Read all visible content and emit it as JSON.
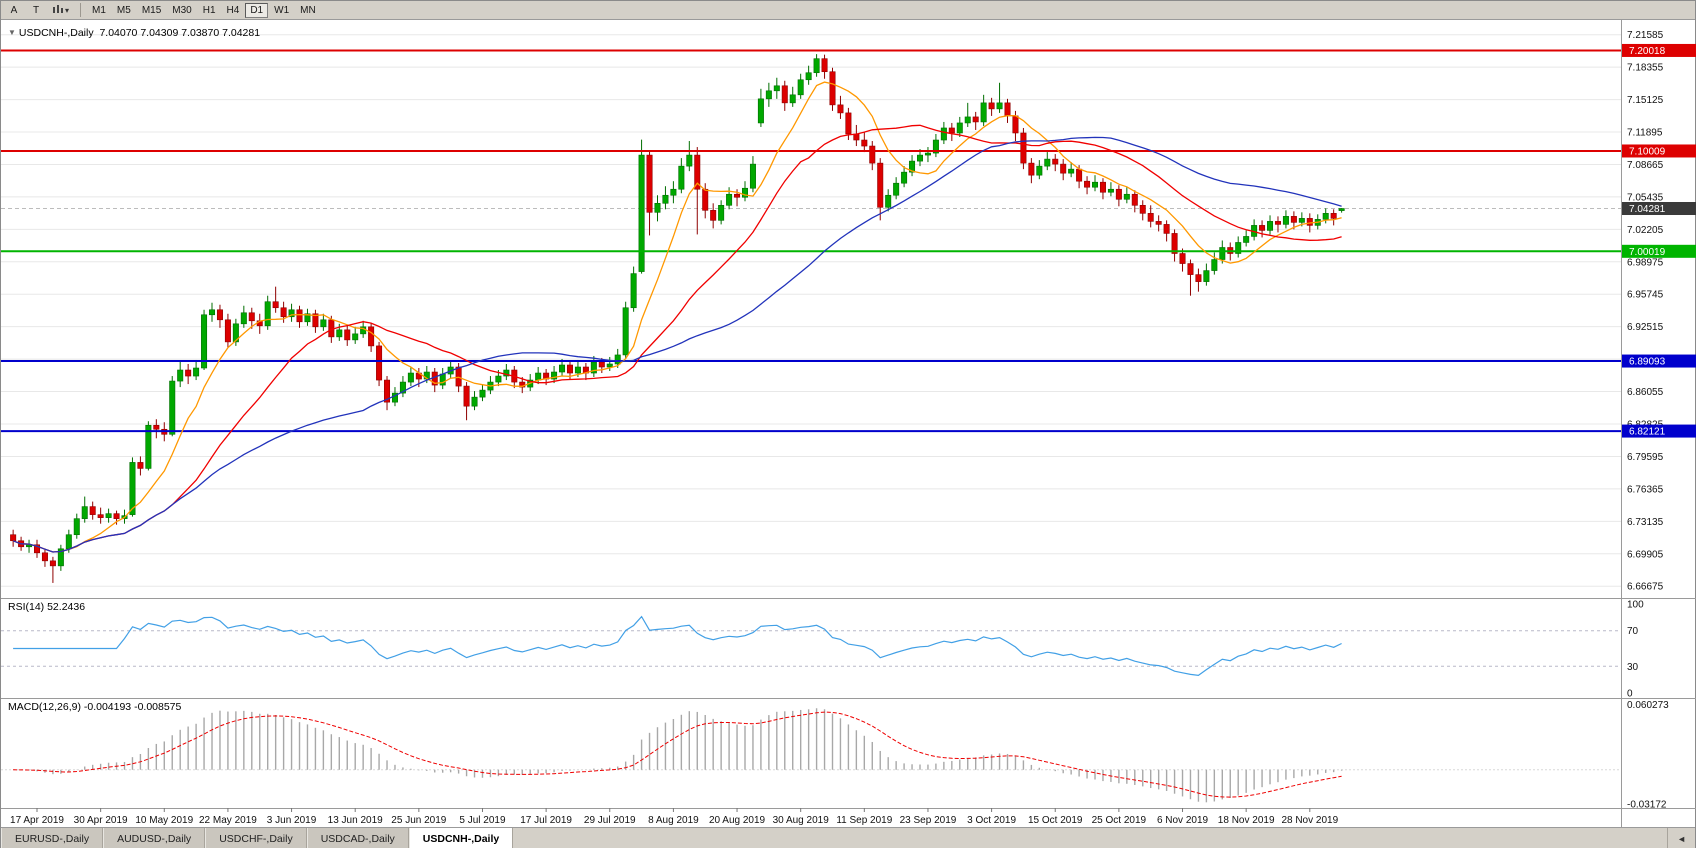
{
  "toolbar": {
    "buttons": [
      {
        "label": "A"
      },
      {
        "label": "T"
      }
    ],
    "timeframes": [
      "M1",
      "M5",
      "M15",
      "M30",
      "H1",
      "H4",
      "D1",
      "W1",
      "MN"
    ],
    "active_timeframe": "D1"
  },
  "chart": {
    "title": "USDCNH-,Daily",
    "open": "7.04070",
    "high": "7.04309",
    "low": "7.03870",
    "close": "7.04281"
  },
  "colors": {
    "bull": "#00a800",
    "bull_border": "#006e00",
    "bear": "#dc0000",
    "bear_border": "#8f0000",
    "grid": "#e8e8e8"
  },
  "tabs": {
    "items": [
      "EURUSD-,Daily",
      "AUDUSD-,Daily",
      "USDCHF-,Daily",
      "USDCAD-,Daily",
      "USDCNH-,Daily"
    ],
    "active_index": 4,
    "scroll_left_icon": "◄"
  },
  "chart_data": {
    "type": "candlestick",
    "symbol": "USDCNH-",
    "period": "Daily",
    "price_range": [
      6.655,
      7.2305
    ],
    "y_ticks": [
      "7.21585",
      "7.18355",
      "7.15125",
      "7.11895",
      "7.08665",
      "7.05435",
      "7.02205",
      "6.98975",
      "6.95745",
      "6.92515",
      "6.89285",
      "6.86055",
      "6.82825",
      "6.79595",
      "6.76365",
      "6.73135",
      "6.69905",
      "6.66675"
    ],
    "x_labels": [
      "17 Apr 2019",
      "30 Apr 2019",
      "10 May 2019",
      "22 May 2019",
      "3 Jun 2019",
      "13 Jun 2019",
      "25 Jun 2019",
      "5 Jul 2019",
      "17 Jul 2019",
      "29 Jul 2019",
      "8 Aug 2019",
      "20 Aug 2019",
      "30 Aug 2019",
      "11 Sep 2019",
      "23 Sep 2019",
      "3 Oct 2019",
      "15 Oct 2019",
      "25 Oct 2019",
      "6 Nov 2019",
      "18 Nov 2019",
      "28 Nov 2019"
    ],
    "label_offset": 3,
    "label_step": 8,
    "hlines": [
      {
        "price": 7.20018,
        "label": "7.20018",
        "color": "#dd0000"
      },
      {
        "price": 7.10009,
        "label": "7.10009",
        "color": "#dd0000"
      },
      {
        "price": 7.00019,
        "label": "7.00019",
        "color": "#00b400"
      },
      {
        "price": 6.89093,
        "label": "6.89093",
        "color": "#0000cc"
      },
      {
        "price": 6.82121,
        "label": "6.82121",
        "color": "#0000cc"
      }
    ],
    "current_price": {
      "value": 7.04281,
      "label": "7.04281",
      "badge_color": "#3a3a3a"
    },
    "moving_averages": [
      {
        "period": 8,
        "color": "#ff9800",
        "name": "ma-fast-orange-line"
      },
      {
        "period": 21,
        "color": "#f00000",
        "name": "ma-mid-red-line"
      },
      {
        "period": 45,
        "color": "#2233bb",
        "name": "ma-slow-blue-line"
      }
    ],
    "rsi": {
      "label": "RSI(14) 52.2436",
      "period": 14,
      "levels": [
        70,
        30
      ],
      "axis_ticks": [
        "100",
        "70",
        "30",
        "0"
      ],
      "color": "#42a0e6"
    },
    "macd": {
      "label": "MACD(12,26,9) -0.004193 -0.008575",
      "fast": 12,
      "slow": 26,
      "signal_period": 9,
      "axis_ticks": [
        "0.060273",
        "-0.03172"
      ],
      "range": [
        -0.0325,
        0.0625
      ],
      "hist_color": "#a8a8a8",
      "signal_color": "#ee0000"
    },
    "candles": [
      [
        6.718,
        6.723,
        6.706,
        6.712
      ],
      [
        6.712,
        6.716,
        6.702,
        6.706
      ],
      [
        6.706,
        6.713,
        6.7,
        6.708
      ],
      [
        6.708,
        6.713,
        6.695,
        6.7
      ],
      [
        6.7,
        6.704,
        6.686,
        6.692
      ],
      [
        6.692,
        6.696,
        6.67,
        6.687
      ],
      [
        6.687,
        6.708,
        6.682,
        6.704
      ],
      [
        6.704,
        6.723,
        6.7,
        6.718
      ],
      [
        6.718,
        6.739,
        6.714,
        6.734
      ],
      [
        6.734,
        6.756,
        6.73,
        6.746
      ],
      [
        6.746,
        6.751,
        6.733,
        6.738
      ],
      [
        6.738,
        6.745,
        6.729,
        6.735
      ],
      [
        6.735,
        6.744,
        6.73,
        6.739
      ],
      [
        6.739,
        6.742,
        6.728,
        6.734
      ],
      [
        6.734,
        6.743,
        6.729,
        6.737
      ],
      [
        6.738,
        6.795,
        6.736,
        6.79
      ],
      [
        6.79,
        6.796,
        6.777,
        6.784
      ],
      [
        6.784,
        6.831,
        6.782,
        6.827
      ],
      [
        6.827,
        6.833,
        6.814,
        6.823
      ],
      [
        6.823,
        6.83,
        6.811,
        6.818
      ],
      [
        6.818,
        6.876,
        6.816,
        6.871
      ],
      [
        6.871,
        6.89,
        6.865,
        6.882
      ],
      [
        6.882,
        6.888,
        6.868,
        6.876
      ],
      [
        6.876,
        6.892,
        6.872,
        6.884
      ],
      [
        6.884,
        6.942,
        6.882,
        6.937
      ],
      [
        6.937,
        6.949,
        6.93,
        6.942
      ],
      [
        6.942,
        6.947,
        6.924,
        6.932
      ],
      [
        6.932,
        6.938,
        6.904,
        6.91
      ],
      [
        6.91,
        6.933,
        6.906,
        6.928
      ],
      [
        6.928,
        6.946,
        6.924,
        6.939
      ],
      [
        6.939,
        6.944,
        6.923,
        6.931
      ],
      [
        6.931,
        6.938,
        6.918,
        6.926
      ],
      [
        6.926,
        6.956,
        6.922,
        6.95
      ],
      [
        6.95,
        6.965,
        6.939,
        6.944
      ],
      [
        6.944,
        6.95,
        6.929,
        6.935
      ],
      [
        6.935,
        6.948,
        6.93,
        6.942
      ],
      [
        6.942,
        6.946,
        6.924,
        6.93
      ],
      [
        6.93,
        6.943,
        6.926,
        6.938
      ],
      [
        6.938,
        6.942,
        6.919,
        6.925
      ],
      [
        6.925,
        6.938,
        6.921,
        6.932
      ],
      [
        6.932,
        6.936,
        6.909,
        6.915
      ],
      [
        6.915,
        6.928,
        6.911,
        6.922
      ],
      [
        6.922,
        6.926,
        6.906,
        6.912
      ],
      [
        6.912,
        6.925,
        6.908,
        6.918
      ],
      [
        6.918,
        6.931,
        6.914,
        6.925
      ],
      [
        6.925,
        6.929,
        6.9,
        6.906
      ],
      [
        6.906,
        6.91,
        6.866,
        6.872
      ],
      [
        6.872,
        6.876,
        6.842,
        6.85
      ],
      [
        6.85,
        6.865,
        6.846,
        6.859
      ],
      [
        6.859,
        6.876,
        6.855,
        6.87
      ],
      [
        6.87,
        6.885,
        6.866,
        6.879
      ],
      [
        6.879,
        6.884,
        6.865,
        6.873
      ],
      [
        6.873,
        6.886,
        6.869,
        6.88
      ],
      [
        6.88,
        6.884,
        6.86,
        6.867
      ],
      [
        6.867,
        6.884,
        6.863,
        6.878
      ],
      [
        6.878,
        6.891,
        6.874,
        6.885
      ],
      [
        6.885,
        6.889,
        6.86,
        6.866
      ],
      [
        6.866,
        6.87,
        6.832,
        6.846
      ],
      [
        6.846,
        6.861,
        6.842,
        6.855
      ],
      [
        6.855,
        6.868,
        6.851,
        6.862
      ],
      [
        6.862,
        6.876,
        6.858,
        6.87
      ],
      [
        6.87,
        6.882,
        6.866,
        6.876
      ],
      [
        6.876,
        6.888,
        6.872,
        6.882
      ],
      [
        6.882,
        6.886,
        6.864,
        6.87
      ],
      [
        6.87,
        6.875,
        6.859,
        6.865
      ],
      [
        6.865,
        6.878,
        6.861,
        6.872
      ],
      [
        6.872,
        6.885,
        6.868,
        6.879
      ],
      [
        6.879,
        6.883,
        6.867,
        6.873
      ],
      [
        6.873,
        6.886,
        6.869,
        6.88
      ],
      [
        6.88,
        6.893,
        6.876,
        6.887
      ],
      [
        6.887,
        6.891,
        6.873,
        6.879
      ],
      [
        6.879,
        6.892,
        6.875,
        6.885
      ],
      [
        6.885,
        6.889,
        6.872,
        6.879
      ],
      [
        6.879,
        6.896,
        6.875,
        6.89
      ],
      [
        6.89,
        6.894,
        6.879,
        6.885
      ],
      [
        6.885,
        6.895,
        6.881,
        6.888
      ],
      [
        6.888,
        6.903,
        6.884,
        6.897
      ],
      [
        6.897,
        6.95,
        6.893,
        6.944
      ],
      [
        6.944,
        6.985,
        6.94,
        6.978
      ],
      [
        6.98,
        7.1114,
        6.978,
        7.096
      ],
      [
        7.096,
        7.101,
        7.016,
        7.039
      ],
      [
        7.039,
        7.056,
        7.03,
        7.048
      ],
      [
        7.048,
        7.065,
        7.042,
        7.056
      ],
      [
        7.056,
        7.07,
        7.048,
        7.062
      ],
      [
        7.062,
        7.093,
        7.058,
        7.085
      ],
      [
        7.085,
        7.11,
        7.08,
        7.096
      ],
      [
        7.096,
        7.104,
        7.017,
        7.062
      ],
      [
        7.062,
        7.068,
        7.033,
        7.041
      ],
      [
        7.041,
        7.048,
        7.023,
        7.031
      ],
      [
        7.031,
        7.051,
        7.027,
        7.046
      ],
      [
        7.046,
        7.064,
        7.042,
        7.057
      ],
      [
        7.057,
        7.062,
        7.045,
        7.054
      ],
      [
        7.054,
        7.07,
        7.05,
        7.063
      ],
      [
        7.063,
        7.095,
        7.059,
        7.087
      ],
      [
        7.128,
        7.162,
        7.124,
        7.152
      ],
      [
        7.152,
        7.168,
        7.144,
        7.16
      ],
      [
        7.16,
        7.173,
        7.152,
        7.165
      ],
      [
        7.165,
        7.17,
        7.14,
        7.148
      ],
      [
        7.148,
        7.164,
        7.144,
        7.156
      ],
      [
        7.156,
        7.177,
        7.152,
        7.171
      ],
      [
        7.171,
        7.185,
        7.166,
        7.178
      ],
      [
        7.178,
        7.1965,
        7.174,
        7.192
      ],
      [
        7.192,
        7.196,
        7.172,
        7.179
      ],
      [
        7.179,
        7.183,
        7.14,
        7.146
      ],
      [
        7.146,
        7.155,
        7.132,
        7.138
      ],
      [
        7.138,
        7.143,
        7.111,
        7.117
      ],
      [
        7.117,
        7.126,
        7.105,
        7.111
      ],
      [
        7.111,
        7.119,
        7.099,
        7.105
      ],
      [
        7.105,
        7.11,
        7.081,
        7.088
      ],
      [
        7.088,
        7.093,
        7.031,
        7.044
      ],
      [
        7.044,
        7.062,
        7.04,
        7.056
      ],
      [
        7.056,
        7.074,
        7.052,
        7.068
      ],
      [
        7.068,
        7.085,
        7.064,
        7.079
      ],
      [
        7.079,
        7.096,
        7.075,
        7.09
      ],
      [
        7.09,
        7.102,
        7.085,
        7.096
      ],
      [
        7.096,
        7.104,
        7.089,
        7.098
      ],
      [
        7.098,
        7.117,
        7.094,
        7.111
      ],
      [
        7.111,
        7.129,
        7.107,
        7.123
      ],
      [
        7.123,
        7.128,
        7.11,
        7.118
      ],
      [
        7.118,
        7.134,
        7.114,
        7.128
      ],
      [
        7.128,
        7.148,
        7.124,
        7.134
      ],
      [
        7.134,
        7.139,
        7.121,
        7.129
      ],
      [
        7.129,
        7.156,
        7.125,
        7.148
      ],
      [
        7.148,
        7.153,
        7.135,
        7.142
      ],
      [
        7.142,
        7.168,
        7.138,
        7.148
      ],
      [
        7.148,
        7.152,
        7.128,
        7.135
      ],
      [
        7.135,
        7.14,
        7.11,
        7.118
      ],
      [
        7.118,
        7.123,
        7.082,
        7.088
      ],
      [
        7.088,
        7.093,
        7.068,
        7.076
      ],
      [
        7.076,
        7.091,
        7.072,
        7.085
      ],
      [
        7.085,
        7.099,
        7.081,
        7.092
      ],
      [
        7.092,
        7.097,
        7.08,
        7.087
      ],
      [
        7.087,
        7.092,
        7.071,
        7.078
      ],
      [
        7.078,
        7.089,
        7.074,
        7.082
      ],
      [
        7.082,
        7.086,
        7.063,
        7.07
      ],
      [
        7.07,
        7.075,
        7.057,
        7.064
      ],
      [
        7.064,
        7.076,
        7.06,
        7.069
      ],
      [
        7.069,
        7.073,
        7.052,
        7.059
      ],
      [
        7.059,
        7.069,
        7.055,
        7.062
      ],
      [
        7.062,
        7.066,
        7.045,
        7.052
      ],
      [
        7.052,
        7.064,
        7.048,
        7.057
      ],
      [
        7.057,
        7.061,
        7.039,
        7.046
      ],
      [
        7.046,
        7.051,
        7.031,
        7.038
      ],
      [
        7.038,
        7.046,
        7.024,
        7.03
      ],
      [
        7.03,
        7.036,
        7.02,
        7.027
      ],
      [
        7.027,
        7.031,
        7.01,
        7.018
      ],
      [
        7.018,
        7.022,
        6.99,
        6.998
      ],
      [
        6.998,
        7.003,
        6.98,
        6.988
      ],
      [
        6.988,
        6.992,
        6.956,
        6.977
      ],
      [
        6.977,
        6.983,
        6.96,
        6.97
      ],
      [
        6.97,
        6.988,
        6.966,
        6.981
      ],
      [
        6.981,
        6.999,
        6.977,
        6.992
      ],
      [
        6.992,
        7.011,
        6.988,
        7.004
      ],
      [
        7.004,
        7.009,
        6.991,
        6.998
      ],
      [
        6.998,
        7.015,
        6.994,
        7.009
      ],
      [
        7.009,
        7.021,
        7.005,
        7.015
      ],
      [
        7.015,
        7.032,
        7.011,
        7.026
      ],
      [
        7.026,
        7.031,
        7.014,
        7.021
      ],
      [
        7.021,
        7.036,
        7.017,
        7.03
      ],
      [
        7.03,
        7.035,
        7.019,
        7.027
      ],
      [
        7.027,
        7.041,
        7.023,
        7.035
      ],
      [
        7.035,
        7.04,
        7.022,
        7.029
      ],
      [
        7.029,
        7.039,
        7.025,
        7.033
      ],
      [
        7.033,
        7.038,
        7.019,
        7.026
      ],
      [
        7.026,
        7.037,
        7.022,
        7.032
      ],
      [
        7.032,
        7.043,
        7.028,
        7.038
      ],
      [
        7.038,
        7.042,
        7.026,
        7.033
      ],
      [
        7.0407,
        7.0431,
        7.0387,
        7.0428
      ]
    ]
  }
}
